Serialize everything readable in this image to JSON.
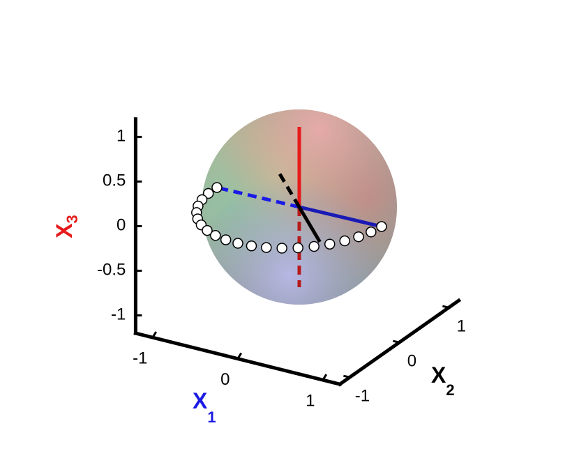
{
  "chart_data": {
    "type": "bloch-sphere",
    "xlabel": {
      "text": "X",
      "sub": "1",
      "color": "#1a1ae6"
    },
    "ylabel": {
      "text": "X",
      "sub": "2",
      "color": "#000000"
    },
    "zlabel": {
      "text": "X",
      "sub": "3",
      "color": "#e61a1a"
    },
    "xlim": [
      -1.2,
      1.2
    ],
    "xticks": [
      -1,
      0,
      1
    ],
    "ylim": [
      -1.2,
      1.2
    ],
    "yticks": [
      -1,
      0,
      1
    ],
    "zlim": [
      -1.2,
      1.2
    ],
    "zticks": [
      -1,
      -0.5,
      0,
      0.5,
      1
    ],
    "vectors": [
      {
        "color": "#e61a1a",
        "dash_color": "#b51a1a",
        "x": [
          0,
          0
        ],
        "y": [
          0,
          0
        ],
        "z": [
          -1,
          1
        ]
      },
      {
        "color": "#1a1ab4",
        "dash_color": "#1a1ae6",
        "x": [
          -1,
          1
        ],
        "y": [
          0,
          0
        ],
        "z": [
          0,
          0
        ]
      },
      {
        "color": "#000000",
        "dash_color": "#000000",
        "x": [
          -0.69,
          0.69
        ],
        "y": [
          0.59,
          -0.59
        ],
        "z": [
          0,
          0
        ]
      }
    ],
    "trajectory": {
      "color": "#ffffff",
      "x": [
        -1,
        -0.988,
        -0.951,
        -0.891,
        -0.809,
        -0.707,
        -0.588,
        -0.454,
        -0.309,
        -0.156,
        0,
        0.156,
        0.309,
        0.454,
        0.588,
        0.707,
        0.809,
        0.891,
        0.951,
        0.988,
        1
      ],
      "y": [
        0,
        -0.156,
        -0.309,
        -0.454,
        -0.588,
        -0.707,
        -0.809,
        -0.891,
        -0.951,
        -0.988,
        -1,
        -0.988,
        -0.951,
        -0.891,
        -0.809,
        -0.707,
        -0.588,
        -0.454,
        -0.309,
        -0.156,
        0
      ],
      "z": [
        0,
        0,
        0,
        0,
        0,
        0,
        0,
        0,
        0,
        0,
        0,
        0,
        0,
        0,
        0,
        0,
        0,
        0,
        0,
        0,
        0
      ]
    }
  }
}
